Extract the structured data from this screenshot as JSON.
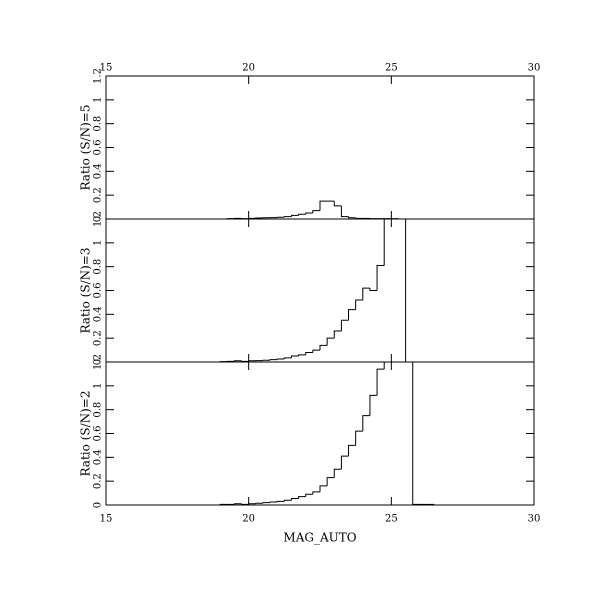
{
  "chart_data": [
    {
      "type": "histogram",
      "ylabel": "Ratio (S/N)=5",
      "color": "#000000",
      "bins": [
        19,
        19.25,
        19.5,
        19.75,
        20,
        20.25,
        20.5,
        20.75,
        21,
        21.25,
        21.5,
        21.75,
        22,
        22.25,
        22.5,
        22.75,
        23,
        23.25,
        23.5,
        23.75,
        24,
        24.25,
        24.5,
        24.75,
        25,
        25.25,
        25.5,
        25.75,
        26,
        26.25,
        26.5,
        26.75,
        27
      ],
      "values": [
        0,
        0.003,
        0.005,
        0.003,
        0.005,
        0.008,
        0.01,
        0.012,
        0.015,
        0.02,
        0.03,
        0.04,
        0.05,
        0.07,
        0.15,
        0.15,
        0.11,
        0.02,
        0.01,
        0.005,
        0.005,
        0.003,
        0.003,
        0.003,
        0.003,
        0,
        0,
        0,
        0,
        0,
        0,
        0
      ],
      "xlim": [
        15,
        30
      ],
      "xticks": [
        15,
        20,
        25,
        30
      ],
      "ylim": [
        0,
        1.2
      ],
      "yticks": [
        0,
        0.2,
        0.4,
        0.6,
        0.8,
        1,
        1.2
      ]
    },
    {
      "type": "histogram",
      "ylabel": "Ratio (S/N)=3",
      "color": "#000000",
      "bins": [
        19,
        19.25,
        19.5,
        19.75,
        20,
        20.25,
        20.5,
        20.75,
        21,
        21.25,
        21.5,
        21.75,
        22,
        22.25,
        22.5,
        22.75,
        23,
        23.25,
        23.5,
        23.75,
        24,
        24.25,
        24.5,
        24.75,
        25,
        25.25,
        25.5,
        25.75,
        26,
        26.25,
        26.5,
        26.75,
        27
      ],
      "values": [
        0.003,
        0.005,
        0.01,
        0.005,
        0.01,
        0.012,
        0.015,
        0.02,
        0.025,
        0.035,
        0.05,
        0.06,
        0.08,
        0.1,
        0.14,
        0.2,
        0.26,
        0.35,
        0.44,
        0.52,
        0.62,
        0.6,
        0.81,
        1.2,
        1.2,
        1.2,
        0,
        0,
        0,
        0,
        0,
        0
      ],
      "xlim": [
        15,
        30
      ],
      "xticks": [
        15,
        20,
        25,
        30
      ],
      "ylim": [
        0,
        1.2
      ],
      "yticks": [
        0,
        0.2,
        0.4,
        0.6,
        0.8,
        1,
        1.2
      ]
    },
    {
      "type": "histogram",
      "ylabel": "Ratio (S/N)=2",
      "xlabel": "MAG_AUTO",
      "color": "#000000",
      "bins": [
        19,
        19.25,
        19.5,
        19.75,
        20,
        20.25,
        20.5,
        20.75,
        21,
        21.25,
        21.5,
        21.75,
        22,
        22.25,
        22.5,
        22.75,
        23,
        23.25,
        23.5,
        23.75,
        24,
        24.25,
        24.5,
        24.75,
        25,
        25.25,
        25.5,
        25.75,
        26,
        26.25,
        26.5,
        26.75,
        27
      ],
      "values": [
        0.005,
        0.005,
        0.01,
        0.005,
        0.01,
        0.015,
        0.02,
        0.025,
        0.03,
        0.04,
        0.055,
        0.07,
        0.09,
        0.11,
        0.16,
        0.23,
        0.3,
        0.41,
        0.5,
        0.62,
        0.75,
        0.92,
        1.14,
        1.2,
        1.2,
        1.2,
        1.2,
        0.005,
        0.005,
        0.005,
        0,
        0
      ],
      "xlim": [
        15,
        30
      ],
      "xticks": [
        15,
        20,
        25,
        30
      ],
      "ylim": [
        0,
        1.2
      ],
      "yticks": [
        0,
        0.2,
        0.4,
        0.6,
        0.8,
        1,
        1.2
      ]
    }
  ]
}
